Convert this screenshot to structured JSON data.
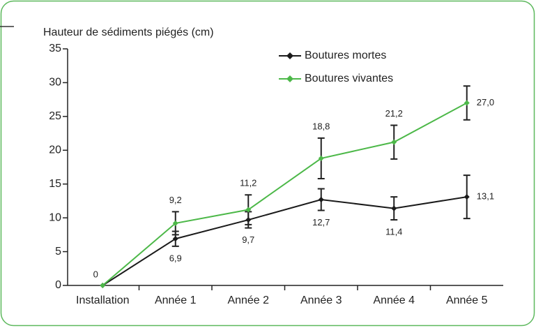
{
  "chart_data": {
    "type": "line",
    "y_axis_label": "Hauteur de sédiments piégés (cm)",
    "categories": [
      "Installation",
      "Année 1",
      "Année 2",
      "Année 3",
      "Année 4",
      "Année 5"
    ],
    "series": [
      {
        "name": "Boutures mortes",
        "color": "#1a1a1a",
        "values": [
          0,
          6.9,
          9.7,
          12.7,
          11.4,
          13.1
        ],
        "value_labels": [
          null,
          "6,9",
          "9,7",
          "12,7",
          "11,4",
          "13,1"
        ],
        "errors": [
          null,
          1.1,
          1.2,
          1.6,
          1.7,
          3.2
        ]
      },
      {
        "name": "Boutures vivantes",
        "color": "#4cb848",
        "values": [
          0,
          9.2,
          11.2,
          18.8,
          21.2,
          27.0
        ],
        "value_labels": [
          "0",
          "9,2",
          "11,2",
          "18,8",
          "21,2",
          "27,0"
        ],
        "errors": [
          null,
          1.7,
          2.2,
          3.0,
          2.5,
          2.5
        ]
      }
    ],
    "ylim": [
      0,
      35
    ],
    "yticks": [
      0,
      5,
      10,
      15,
      20,
      25,
      30,
      35
    ],
    "legend": "top",
    "grid": false
  }
}
